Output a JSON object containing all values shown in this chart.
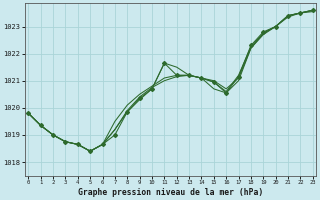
{
  "title": "Graphe pression niveau de la mer (hPa)",
  "hours": [
    0,
    1,
    2,
    3,
    4,
    5,
    6,
    7,
    8,
    9,
    10,
    11,
    12,
    13,
    14,
    15,
    16,
    17,
    18,
    19,
    20,
    21,
    22,
    23
  ],
  "ylim": [
    1017.5,
    1023.85
  ],
  "yticks": [
    1018,
    1019,
    1020,
    1021,
    1022,
    1023
  ],
  "background_color": "#cce9ee",
  "grid_color": "#aad4d8",
  "line_color": "#2d6a2d",
  "y_series1": [
    1019.8,
    1019.35,
    1019.0,
    1018.75,
    1018.65,
    1018.4,
    1018.65,
    1019.0,
    1019.85,
    1020.35,
    1020.7,
    1021.65,
    1021.2,
    1021.2,
    1021.1,
    1020.95,
    1020.55,
    1021.15,
    1022.3,
    1022.8,
    1023.0,
    1023.4,
    1023.5,
    1023.6
  ],
  "y_series2": [
    1019.8,
    1019.35,
    1019.0,
    1018.75,
    1018.65,
    1018.4,
    1018.65,
    1019.5,
    1020.1,
    1020.5,
    1020.8,
    1021.1,
    1021.2,
    1021.2,
    1021.1,
    1020.95,
    1020.6,
    1021.2,
    1022.25,
    1022.75,
    1023.0,
    1023.4,
    1023.5,
    1023.6
  ],
  "y_series3": [
    1019.8,
    1019.35,
    1019.0,
    1018.75,
    1018.65,
    1018.4,
    1018.65,
    1019.2,
    1019.9,
    1020.4,
    1020.75,
    1021.0,
    1021.15,
    1021.2,
    1021.1,
    1021.0,
    1020.7,
    1021.1,
    1022.2,
    1022.7,
    1023.0,
    1023.4,
    1023.5,
    1023.6
  ],
  "y_series4": [
    1019.8,
    1019.35,
    1019.0,
    1018.75,
    1018.65,
    1018.4,
    1018.65,
    1019.2,
    1019.85,
    1020.3,
    1020.7,
    1021.65,
    1021.5,
    1021.2,
    1021.1,
    1020.7,
    1020.55,
    1021.0,
    1022.2,
    1022.75,
    1023.0,
    1023.35,
    1023.5,
    1023.55
  ],
  "fig_width": 3.2,
  "fig_height": 2.0,
  "dpi": 100
}
